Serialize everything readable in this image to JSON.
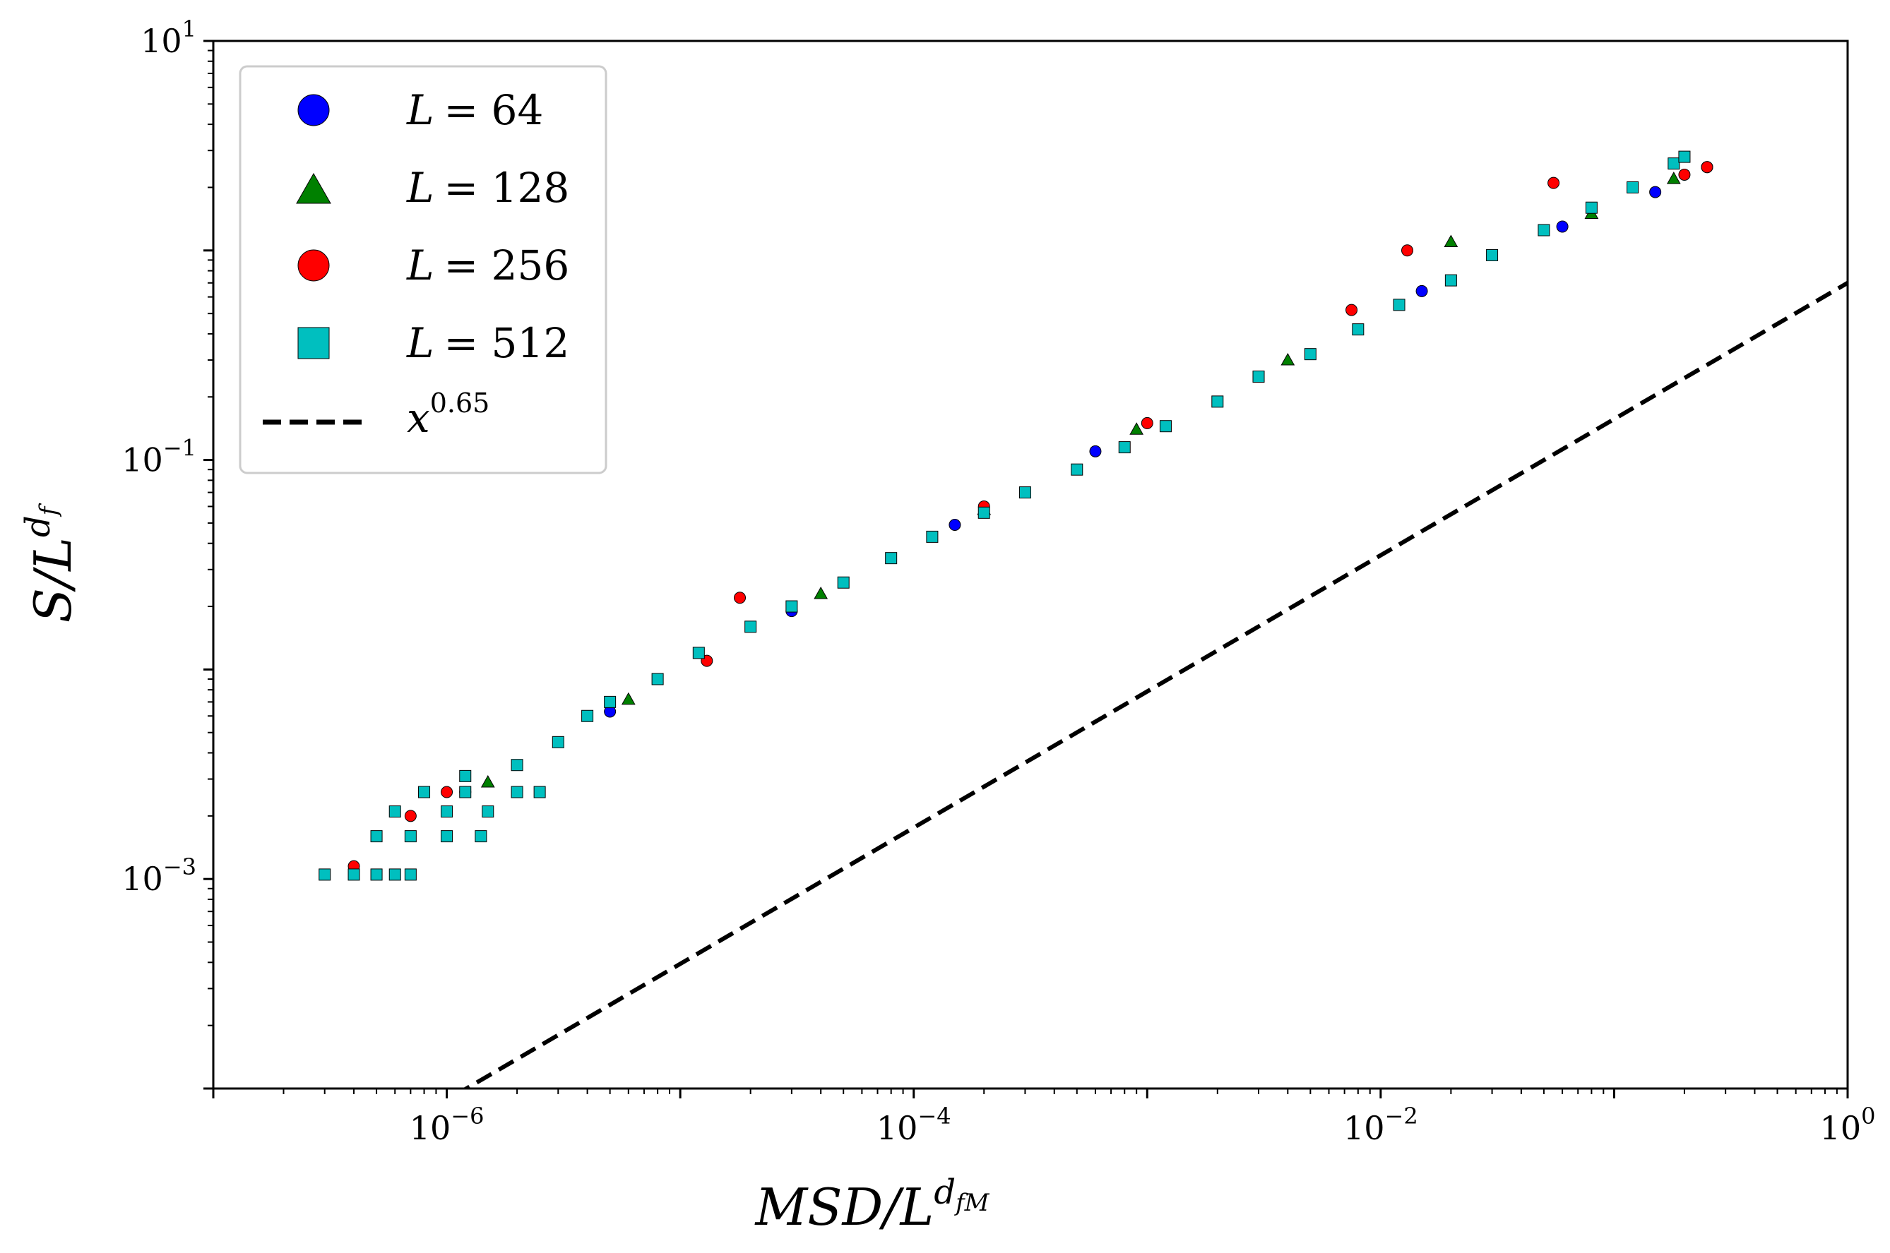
{
  "chart_data": {
    "type": "scatter",
    "title": "",
    "xscale": "log",
    "yscale": "log",
    "xlim": [
      1e-07,
      1
    ],
    "ylim": [
      0.0001,
      10
    ],
    "xlabel": {
      "base": "MSD/L",
      "sup": "d",
      "sup_sub": "fM"
    },
    "ylabel": {
      "base": "S/L",
      "sup": "d",
      "sup_sub": "f"
    },
    "x_ticks": [
      {
        "value": 1e-06,
        "base": "10",
        "exp": "−6"
      },
      {
        "value": 0.0001,
        "base": "10",
        "exp": "−4"
      },
      {
        "value": 0.01,
        "base": "10",
        "exp": "−2"
      },
      {
        "value": 1,
        "base": "10",
        "exp": "0"
      }
    ],
    "y_ticks": [
      {
        "value": 0.001,
        "base": "10",
        "exp": "−3"
      },
      {
        "value": 0.1,
        "base": "10",
        "exp": "−1"
      },
      {
        "value": 10,
        "base": "10",
        "exp": "1"
      }
    ],
    "grid": false,
    "legend_position": "top-left",
    "series": [
      {
        "name": "L = 64",
        "legend_var": "L",
        "legend_value": "= 64",
        "marker": "circle",
        "color": "#0000ff",
        "points": [
          [
            1.2e-06,
            0.0026
          ],
          [
            5e-06,
            0.0063
          ],
          [
            3e-05,
            0.019
          ],
          [
            0.00015,
            0.049
          ],
          [
            0.0006,
            0.11
          ],
          [
            0.003,
            0.25
          ],
          [
            0.015,
            0.64
          ],
          [
            0.06,
            1.3
          ],
          [
            0.15,
            1.9
          ],
          [
            0.25,
            2.5
          ]
        ]
      },
      {
        "name": "L = 128",
        "legend_var": "L",
        "legend_value": "= 128",
        "marker": "triangle",
        "color": "#008000",
        "points": [
          [
            1.5e-06,
            0.0029
          ],
          [
            6e-06,
            0.0072
          ],
          [
            4e-05,
            0.023
          ],
          [
            0.0002,
            0.058
          ],
          [
            0.0009,
            0.14
          ],
          [
            0.004,
            0.3
          ],
          [
            0.02,
            1.1
          ],
          [
            0.08,
            1.5
          ],
          [
            0.18,
            2.2
          ]
        ]
      },
      {
        "name": "L = 256",
        "legend_var": "L",
        "legend_value": "= 256",
        "marker": "circle",
        "color": "#ff0000",
        "points": [
          [
            4e-07,
            0.00115
          ],
          [
            7e-07,
            0.002
          ],
          [
            1e-06,
            0.0026
          ],
          [
            1.8e-05,
            0.022
          ],
          [
            1.3e-05,
            0.011
          ],
          [
            0.0002,
            0.06
          ],
          [
            0.001,
            0.15
          ],
          [
            0.0075,
            0.52
          ],
          [
            0.013,
            1.0
          ],
          [
            0.055,
            2.1
          ],
          [
            0.2,
            2.3
          ],
          [
            0.25,
            2.5
          ]
        ]
      },
      {
        "name": "L = 512",
        "legend_var": "L",
        "legend_value": "= 512",
        "marker": "square",
        "color": "#00bfbf",
        "points": [
          [
            3e-07,
            0.00105
          ],
          [
            4e-07,
            0.00105
          ],
          [
            5e-07,
            0.00105
          ],
          [
            6e-07,
            0.00105
          ],
          [
            7e-07,
            0.00105
          ],
          [
            5e-07,
            0.0016
          ],
          [
            7e-07,
            0.0016
          ],
          [
            1e-06,
            0.0016
          ],
          [
            1.4e-06,
            0.0016
          ],
          [
            6e-07,
            0.0021
          ],
          [
            1e-06,
            0.0021
          ],
          [
            1.5e-06,
            0.0021
          ],
          [
            8e-07,
            0.0026
          ],
          [
            1.2e-06,
            0.0026
          ],
          [
            2e-06,
            0.0026
          ],
          [
            2.5e-06,
            0.0026
          ],
          [
            1.2e-06,
            0.0031
          ],
          [
            2e-06,
            0.0035
          ],
          [
            3e-06,
            0.0045
          ],
          [
            4e-06,
            0.006
          ],
          [
            5e-06,
            0.007
          ],
          [
            8e-06,
            0.009
          ],
          [
            1.2e-05,
            0.012
          ],
          [
            2e-05,
            0.016
          ],
          [
            3e-05,
            0.02
          ],
          [
            5e-05,
            0.026
          ],
          [
            8e-05,
            0.034
          ],
          [
            0.00012,
            0.043
          ],
          [
            0.0002,
            0.056
          ],
          [
            0.0003,
            0.07
          ],
          [
            0.0005,
            0.09
          ],
          [
            0.0008,
            0.115
          ],
          [
            0.0012,
            0.145
          ],
          [
            0.002,
            0.19
          ],
          [
            0.003,
            0.25
          ],
          [
            0.005,
            0.32
          ],
          [
            0.008,
            0.42
          ],
          [
            0.012,
            0.55
          ],
          [
            0.02,
            0.72
          ],
          [
            0.03,
            0.95
          ],
          [
            0.05,
            1.25
          ],
          [
            0.08,
            1.6
          ],
          [
            0.12,
            2.0
          ],
          [
            0.18,
            2.6
          ],
          [
            0.2,
            2.8
          ]
        ]
      },
      {
        "name": "x^0.65",
        "legend_var": "x",
        "legend_value": "",
        "legend_sup": "0.65",
        "marker": "dashed-line",
        "color": "#000000",
        "function": {
          "exponent": 0.65,
          "prefactor": 0.7
        }
      }
    ]
  }
}
